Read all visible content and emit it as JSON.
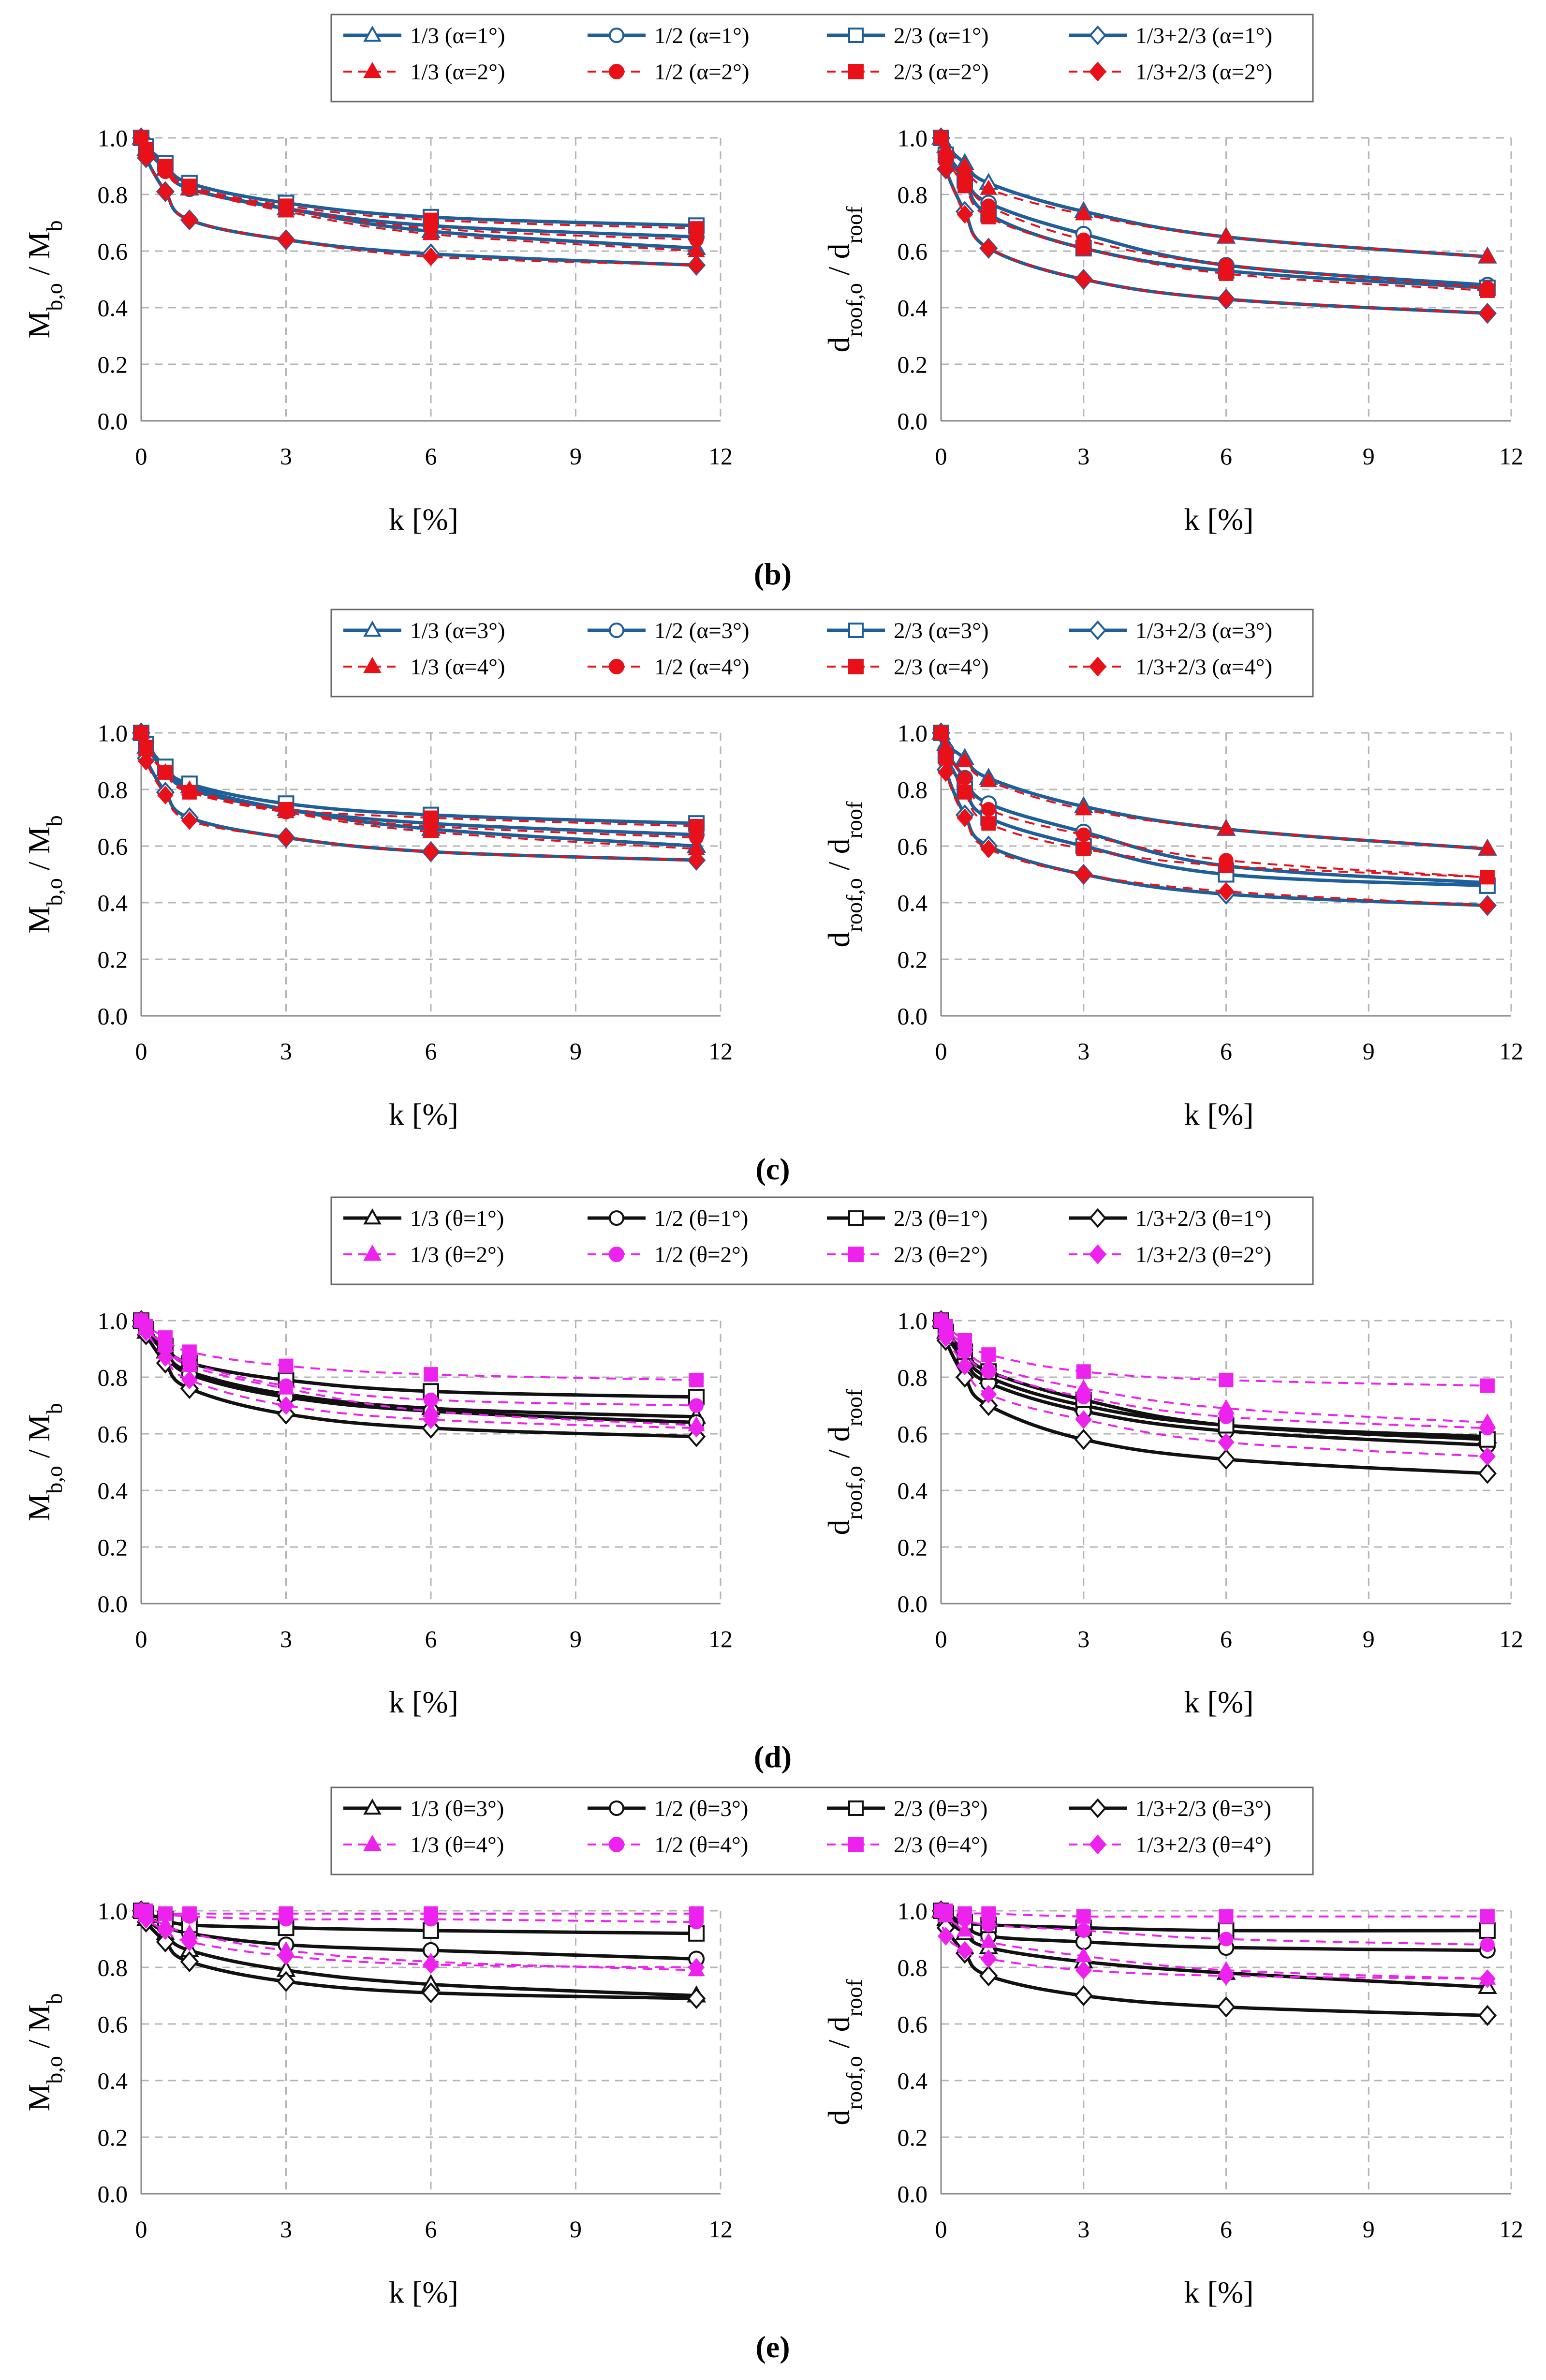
{
  "figure": {
    "panels": [
      {
        "label": "(b)",
        "legend": {
          "entries": [
            "1/3 (α=1°)",
            "1/2 (α=1°)",
            "2/3 (α=1°)",
            "1/3+2/3 (α=1°)",
            "1/3 (α=2°)",
            "1/2 (α=2°)",
            "2/3 (α=2°)",
            "1/3+2/3 (α=2°)"
          ]
        }
      },
      {
        "label": "(c)",
        "legend": {
          "entries": [
            "1/3 (α=3°)",
            "1/2 (α=3°)",
            "2/3 (α=3°)",
            "1/3+2/3 (α=3°)",
            "1/3 (α=4°)",
            "1/2 (α=4°)",
            "2/3 (α=4°)",
            "1/3+2/3 (α=4°)"
          ]
        }
      },
      {
        "label": "(d)",
        "legend": {
          "entries": [
            "1/3 (θ=1°)",
            "1/2 (θ=1°)",
            "2/3 (θ=1°)",
            "1/3+2/3 (θ=1°)",
            "1/3 (θ=2°)",
            "1/2 (θ=2°)",
            "2/3 (θ=2°)",
            "1/3+2/3 (θ=2°)"
          ]
        }
      },
      {
        "label": "(e)",
        "legend": {
          "entries": [
            "1/3 (θ=3°)",
            "1/2 (θ=3°)",
            "2/3 (θ=3°)",
            "1/3+2/3 (θ=3°)",
            "1/3 (θ=4°)",
            "1/2 (θ=4°)",
            "2/3 (θ=4°)",
            "1/3+2/3 (θ=4°)"
          ]
        }
      }
    ],
    "colors": {
      "blue": "#1F5F99",
      "red": "#E8111A",
      "black": "#111111",
      "magenta": "#EE22EE",
      "grid": "#B4B4B4",
      "axis": "#888888"
    }
  },
  "chart_data": [
    {
      "panel": "(b)",
      "side": "left",
      "type": "line",
      "xlabel": "k [%]",
      "ylabel": "M_b,o / M_b",
      "xlim": [
        0,
        12
      ],
      "ylim": [
        0,
        1.0
      ],
      "xticks": [
        "0",
        "3",
        "6",
        "9",
        "12"
      ],
      "yticks": [
        "0.0",
        "0.2",
        "0.4",
        "0.6",
        "0.8",
        "1.0"
      ],
      "x": [
        0,
        0.1,
        0.5,
        1,
        3,
        6,
        11.5
      ],
      "series": [
        {
          "name": "1/3 (α=1°)",
          "values": [
            1.0,
            0.96,
            0.89,
            0.82,
            0.75,
            0.67,
            0.61
          ]
        },
        {
          "name": "1/2 (α=1°)",
          "values": [
            1.0,
            0.96,
            0.89,
            0.82,
            0.75,
            0.69,
            0.65
          ]
        },
        {
          "name": "2/3 (α=1°)",
          "values": [
            1.0,
            0.97,
            0.91,
            0.84,
            0.77,
            0.72,
            0.69
          ]
        },
        {
          "name": "1/3+2/3 (α=1°)",
          "values": [
            1.0,
            0.93,
            0.81,
            0.71,
            0.64,
            0.59,
            0.55
          ]
        },
        {
          "name": "1/3 (α=2°)",
          "values": [
            1.0,
            0.96,
            0.89,
            0.82,
            0.74,
            0.66,
            0.6
          ]
        },
        {
          "name": "1/2 (α=2°)",
          "values": [
            1.0,
            0.95,
            0.88,
            0.82,
            0.75,
            0.68,
            0.64
          ]
        },
        {
          "name": "2/3 (α=2°)",
          "values": [
            1.0,
            0.96,
            0.9,
            0.83,
            0.76,
            0.71,
            0.68
          ]
        },
        {
          "name": "1/3+2/3 (α=2°)",
          "values": [
            1.0,
            0.93,
            0.81,
            0.71,
            0.64,
            0.58,
            0.55
          ]
        }
      ]
    },
    {
      "panel": "(b)",
      "side": "right",
      "type": "line",
      "xlabel": "k [%]",
      "ylabel": "d_roof,o / d_roof",
      "xlim": [
        0,
        12
      ],
      "ylim": [
        0,
        1.0
      ],
      "xticks": [
        "0",
        "3",
        "6",
        "9",
        "12"
      ],
      "yticks": [
        "0.0",
        "0.2",
        "0.4",
        "0.6",
        "0.8",
        "1.0"
      ],
      "x": [
        0,
        0.1,
        0.5,
        1,
        3,
        6,
        11.5
      ],
      "series": [
        {
          "name": "1/3 (α=1°)",
          "values": [
            1.0,
            0.97,
            0.91,
            0.84,
            0.74,
            0.65,
            0.58
          ]
        },
        {
          "name": "1/2 (α=1°)",
          "values": [
            1.0,
            0.95,
            0.86,
            0.77,
            0.66,
            0.55,
            0.48
          ]
        },
        {
          "name": "2/3 (α=1°)",
          "values": [
            1.0,
            0.94,
            0.85,
            0.73,
            0.61,
            0.53,
            0.47
          ]
        },
        {
          "name": "1/3+2/3 (α=1°)",
          "values": [
            1.0,
            0.89,
            0.74,
            0.61,
            0.5,
            0.43,
            0.38
          ]
        },
        {
          "name": "1/3 (α=2°)",
          "values": [
            1.0,
            0.96,
            0.9,
            0.82,
            0.73,
            0.65,
            0.58
          ]
        },
        {
          "name": "1/2 (α=2°)",
          "values": [
            1.0,
            0.94,
            0.86,
            0.76,
            0.64,
            0.55,
            0.47
          ]
        },
        {
          "name": "2/3 (α=2°)",
          "values": [
            1.0,
            0.93,
            0.83,
            0.72,
            0.61,
            0.52,
            0.46
          ]
        },
        {
          "name": "1/3+2/3 (α=2°)",
          "values": [
            1.0,
            0.89,
            0.73,
            0.61,
            0.5,
            0.43,
            0.38
          ]
        }
      ]
    },
    {
      "panel": "(c)",
      "side": "left",
      "type": "line",
      "xlabel": "k [%]",
      "ylabel": "M_b,o / M_b",
      "xlim": [
        0,
        12
      ],
      "ylim": [
        0,
        1.0
      ],
      "xticks": [
        "0",
        "3",
        "6",
        "9",
        "12"
      ],
      "yticks": [
        "0.0",
        "0.2",
        "0.4",
        "0.6",
        "0.8",
        "1.0"
      ],
      "x": [
        0,
        0.1,
        0.5,
        1,
        3,
        6,
        11.5
      ],
      "series": [
        {
          "name": "1/3 (α=3°)",
          "values": [
            1.0,
            0.95,
            0.87,
            0.81,
            0.73,
            0.66,
            0.6
          ]
        },
        {
          "name": "1/2 (α=3°)",
          "values": [
            1.0,
            0.95,
            0.87,
            0.8,
            0.73,
            0.68,
            0.64
          ]
        },
        {
          "name": "2/3 (α=3°)",
          "values": [
            1.0,
            0.96,
            0.88,
            0.82,
            0.75,
            0.71,
            0.68
          ]
        },
        {
          "name": "1/3+2/3 (α=3°)",
          "values": [
            1.0,
            0.91,
            0.79,
            0.7,
            0.63,
            0.58,
            0.55
          ]
        },
        {
          "name": "1/3 (α=4°)",
          "values": [
            1.0,
            0.94,
            0.86,
            0.8,
            0.72,
            0.65,
            0.59
          ]
        },
        {
          "name": "1/2 (α=4°)",
          "values": [
            1.0,
            0.94,
            0.86,
            0.79,
            0.72,
            0.67,
            0.63
          ]
        },
        {
          "name": "2/3 (α=4°)",
          "values": [
            1.0,
            0.95,
            0.86,
            0.79,
            0.73,
            0.7,
            0.67
          ]
        },
        {
          "name": "1/3+2/3 (α=4°)",
          "values": [
            1.0,
            0.9,
            0.78,
            0.69,
            0.63,
            0.58,
            0.55
          ]
        }
      ]
    },
    {
      "panel": "(c)",
      "side": "right",
      "type": "line",
      "xlabel": "k [%]",
      "ylabel": "d_roof,o / d_roof",
      "xlim": [
        0,
        12
      ],
      "ylim": [
        0,
        1.0
      ],
      "xticks": [
        "0",
        "3",
        "6",
        "9",
        "12"
      ],
      "yticks": [
        "0.0",
        "0.2",
        "0.4",
        "0.6",
        "0.8",
        "1.0"
      ],
      "x": [
        0,
        0.1,
        0.5,
        1,
        3,
        6,
        11.5
      ],
      "series": [
        {
          "name": "1/3 (α=3°)",
          "values": [
            1.0,
            0.96,
            0.91,
            0.84,
            0.74,
            0.66,
            0.59
          ]
        },
        {
          "name": "1/2 (α=3°)",
          "values": [
            1.0,
            0.94,
            0.84,
            0.75,
            0.65,
            0.53,
            0.47
          ]
        },
        {
          "name": "2/3 (α=3°)",
          "values": [
            1.0,
            0.92,
            0.8,
            0.7,
            0.6,
            0.5,
            0.46
          ]
        },
        {
          "name": "1/3+2/3 (α=3°)",
          "values": [
            1.0,
            0.87,
            0.71,
            0.6,
            0.5,
            0.43,
            0.39
          ]
        },
        {
          "name": "1/3 (α=4°)",
          "values": [
            1.0,
            0.95,
            0.9,
            0.83,
            0.73,
            0.66,
            0.59
          ]
        },
        {
          "name": "1/2 (α=4°)",
          "values": [
            1.0,
            0.93,
            0.84,
            0.73,
            0.64,
            0.55,
            0.49
          ]
        },
        {
          "name": "2/3 (α=4°)",
          "values": [
            1.0,
            0.91,
            0.79,
            0.68,
            0.59,
            0.53,
            0.49
          ]
        },
        {
          "name": "1/3+2/3 (α=4°)",
          "values": [
            1.0,
            0.86,
            0.7,
            0.59,
            0.5,
            0.44,
            0.39
          ]
        }
      ]
    },
    {
      "panel": "(d)",
      "side": "left",
      "type": "line",
      "xlabel": "k [%]",
      "ylabel": "M_b,o / M_b",
      "xlim": [
        0,
        12
      ],
      "ylim": [
        0,
        1.0
      ],
      "xticks": [
        "0",
        "3",
        "6",
        "9",
        "12"
      ],
      "yticks": [
        "0.0",
        "0.2",
        "0.4",
        "0.6",
        "0.8",
        "1.0"
      ],
      "x": [
        0,
        0.1,
        0.5,
        1,
        3,
        6,
        11.5
      ],
      "series": [
        {
          "name": "1/3 (θ=1°)",
          "values": [
            1.0,
            0.96,
            0.89,
            0.82,
            0.74,
            0.69,
            0.66
          ]
        },
        {
          "name": "1/2 (θ=1°)",
          "values": [
            1.0,
            0.96,
            0.89,
            0.81,
            0.73,
            0.68,
            0.64
          ]
        },
        {
          "name": "2/3 (θ=1°)",
          "values": [
            1.0,
            0.97,
            0.91,
            0.85,
            0.79,
            0.75,
            0.73
          ]
        },
        {
          "name": "1/3+2/3 (θ=1°)",
          "values": [
            1.0,
            0.95,
            0.85,
            0.76,
            0.67,
            0.62,
            0.59
          ]
        },
        {
          "name": "1/3 (θ=2°)",
          "values": [
            1.0,
            0.97,
            0.91,
            0.84,
            0.76,
            0.68,
            0.63
          ]
        },
        {
          "name": "1/2 (θ=2°)",
          "values": [
            1.0,
            0.97,
            0.91,
            0.85,
            0.77,
            0.72,
            0.7
          ]
        },
        {
          "name": "2/3 (θ=2°)",
          "values": [
            1.0,
            0.98,
            0.94,
            0.89,
            0.84,
            0.81,
            0.79
          ]
        },
        {
          "name": "1/3+2/3 (θ=2°)",
          "values": [
            1.0,
            0.96,
            0.87,
            0.79,
            0.7,
            0.65,
            0.62
          ]
        }
      ]
    },
    {
      "panel": "(d)",
      "side": "right",
      "type": "line",
      "xlabel": "k [%]",
      "ylabel": "d_roof,o / d_roof",
      "xlim": [
        0,
        12
      ],
      "ylim": [
        0,
        1.0
      ],
      "xticks": [
        "0",
        "3",
        "6",
        "9",
        "12"
      ],
      "yticks": [
        "0.0",
        "0.2",
        "0.4",
        "0.6",
        "0.8",
        "1.0"
      ],
      "x": [
        0,
        0.1,
        0.5,
        1,
        3,
        6,
        11.5
      ],
      "series": [
        {
          "name": "1/3 (θ=1°)",
          "values": [
            1.0,
            0.96,
            0.88,
            0.8,
            0.7,
            0.63,
            0.59
          ]
        },
        {
          "name": "1/2 (θ=1°)",
          "values": [
            1.0,
            0.95,
            0.86,
            0.78,
            0.68,
            0.61,
            0.56
          ]
        },
        {
          "name": "2/3 (θ=1°)",
          "values": [
            1.0,
            0.96,
            0.89,
            0.82,
            0.72,
            0.63,
            0.58
          ]
        },
        {
          "name": "1/3+2/3 (θ=1°)",
          "values": [
            1.0,
            0.93,
            0.8,
            0.7,
            0.58,
            0.51,
            0.46
          ]
        },
        {
          "name": "1/3 (θ=2°)",
          "values": [
            1.0,
            0.97,
            0.91,
            0.84,
            0.76,
            0.69,
            0.64
          ]
        },
        {
          "name": "1/2 (θ=2°)",
          "values": [
            1.0,
            0.96,
            0.89,
            0.82,
            0.73,
            0.66,
            0.62
          ]
        },
        {
          "name": "2/3 (θ=2°)",
          "values": [
            1.0,
            0.98,
            0.93,
            0.88,
            0.82,
            0.79,
            0.77
          ]
        },
        {
          "name": "1/3+2/3 (θ=2°)",
          "values": [
            1.0,
            0.94,
            0.84,
            0.74,
            0.65,
            0.57,
            0.52
          ]
        }
      ]
    },
    {
      "panel": "(e)",
      "side": "left",
      "type": "line",
      "xlabel": "k [%]",
      "ylabel": "M_b,o / M_b",
      "xlim": [
        0,
        12
      ],
      "ylim": [
        0,
        1.0
      ],
      "xticks": [
        "0",
        "3",
        "6",
        "9",
        "12"
      ],
      "yticks": [
        "0.0",
        "0.2",
        "0.4",
        "0.6",
        "0.8",
        "1.0"
      ],
      "x": [
        0,
        0.1,
        0.5,
        1,
        3,
        6,
        11.5
      ],
      "series": [
        {
          "name": "1/3 (θ=3°)",
          "values": [
            1.0,
            0.97,
            0.92,
            0.86,
            0.79,
            0.74,
            0.7
          ]
        },
        {
          "name": "1/2 (θ=3°)",
          "values": [
            1.0,
            0.98,
            0.95,
            0.92,
            0.88,
            0.86,
            0.83
          ]
        },
        {
          "name": "2/3 (θ=3°)",
          "values": [
            1.0,
            0.99,
            0.97,
            0.95,
            0.94,
            0.93,
            0.92
          ]
        },
        {
          "name": "1/3+2/3 (θ=3°)",
          "values": [
            1.0,
            0.96,
            0.89,
            0.82,
            0.75,
            0.71,
            0.69
          ]
        },
        {
          "name": "1/3 (θ=4°)",
          "values": [
            1.0,
            0.98,
            0.95,
            0.92,
            0.86,
            0.82,
            0.79
          ]
        },
        {
          "name": "1/2 (θ=4°)",
          "values": [
            1.0,
            1.0,
            0.99,
            0.98,
            0.97,
            0.97,
            0.96
          ]
        },
        {
          "name": "2/3 (θ=4°)",
          "values": [
            1.0,
            1.0,
            0.99,
            0.99,
            0.99,
            0.99,
            0.99
          ]
        },
        {
          "name": "1/3+2/3 (θ=4°)",
          "values": [
            1.0,
            0.97,
            0.93,
            0.89,
            0.84,
            0.81,
            0.8
          ]
        }
      ]
    },
    {
      "panel": "(e)",
      "side": "right",
      "type": "line",
      "xlabel": "k [%]",
      "ylabel": "d_roof,o / d_roof",
      "xlim": [
        0,
        12
      ],
      "ylim": [
        0,
        1.0
      ],
      "xticks": [
        "0",
        "3",
        "6",
        "9",
        "12"
      ],
      "yticks": [
        "0.0",
        "0.2",
        "0.4",
        "0.6",
        "0.8",
        "1.0"
      ],
      "x": [
        0,
        0.1,
        0.5,
        1,
        3,
        6,
        11.5
      ],
      "series": [
        {
          "name": "1/3 (θ=3°)",
          "values": [
            1.0,
            0.97,
            0.92,
            0.87,
            0.82,
            0.78,
            0.73
          ]
        },
        {
          "name": "1/2 (θ=3°)",
          "values": [
            1.0,
            0.98,
            0.95,
            0.91,
            0.89,
            0.87,
            0.86
          ]
        },
        {
          "name": "2/3 (θ=3°)",
          "values": [
            1.0,
            0.99,
            0.96,
            0.95,
            0.94,
            0.93,
            0.93
          ]
        },
        {
          "name": "1/3+2/3 (θ=3°)",
          "values": [
            1.0,
            0.94,
            0.85,
            0.77,
            0.7,
            0.66,
            0.63
          ]
        },
        {
          "name": "1/3 (θ=4°)",
          "values": [
            1.0,
            0.98,
            0.93,
            0.89,
            0.84,
            0.79,
            0.76
          ]
        },
        {
          "name": "1/2 (θ=4°)",
          "values": [
            1.0,
            0.99,
            0.97,
            0.95,
            0.93,
            0.9,
            0.88
          ]
        },
        {
          "name": "2/3 (θ=4°)",
          "values": [
            1.0,
            1.0,
            0.99,
            0.99,
            0.98,
            0.98,
            0.98
          ]
        },
        {
          "name": "1/3+2/3 (θ=4°)",
          "values": [
            1.0,
            0.91,
            0.86,
            0.83,
            0.79,
            0.77,
            0.76
          ]
        }
      ]
    }
  ]
}
